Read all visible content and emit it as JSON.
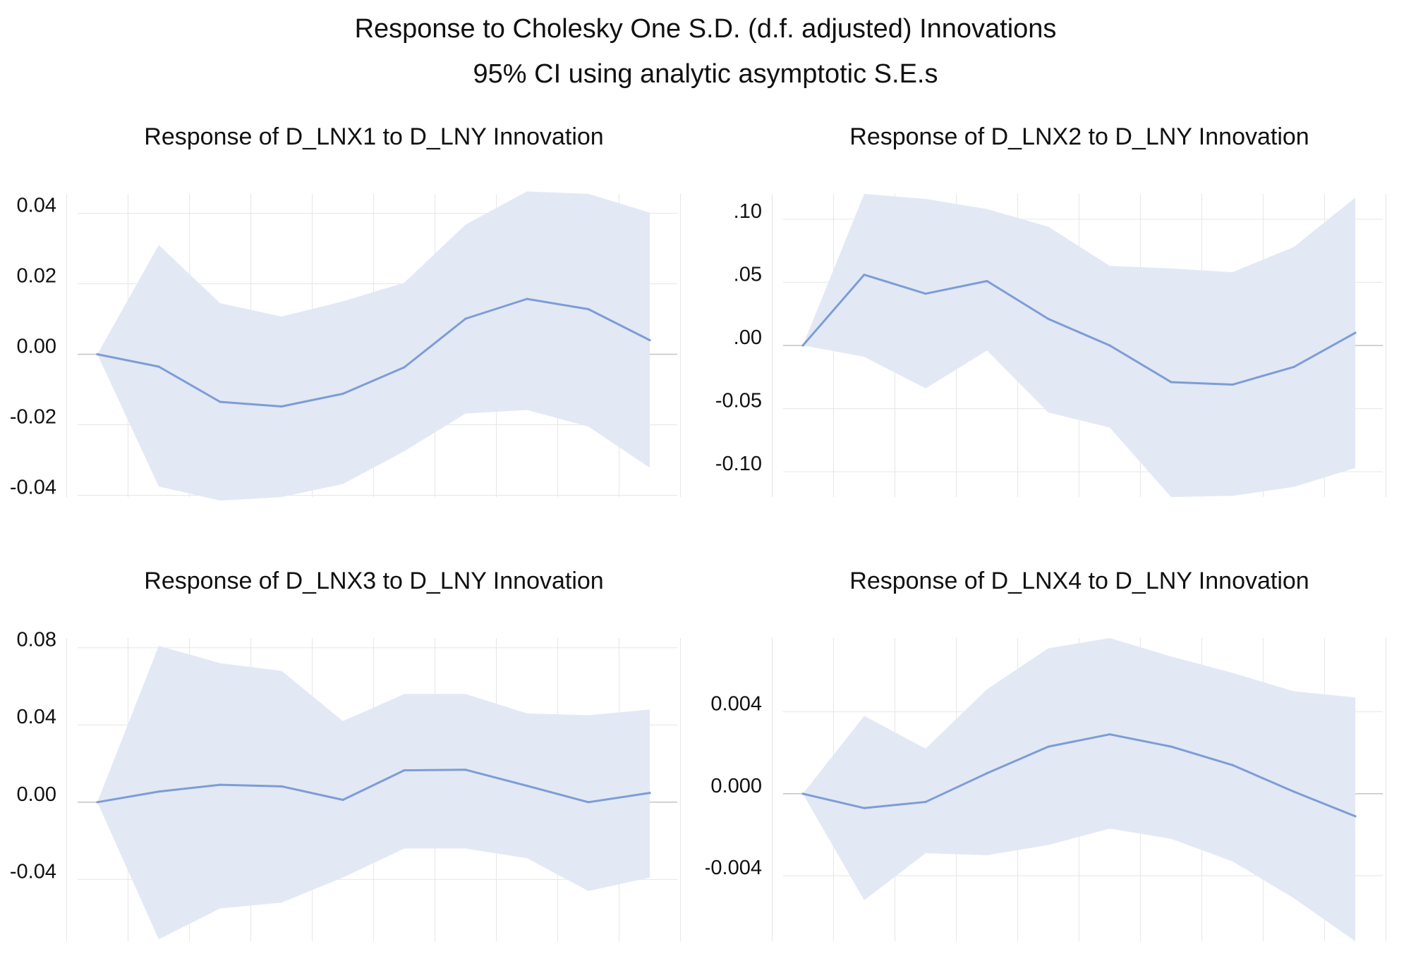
{
  "title": "Response to Cholesky One S.D. (d.f. adjusted) Innovations",
  "subtitle": "95% CI using analytic asymptotic S.E.s",
  "colors": {
    "band": "#e3e8f5",
    "line": "#7c9dd6",
    "grid": "#e6e6e6",
    "zero": "#c4c4c4"
  },
  "chart_data": [
    {
      "type": "line",
      "title": "Response of D_LNX1 to D_LNY Innovation",
      "x": [
        1,
        2,
        3,
        4,
        5,
        6,
        7,
        8,
        9,
        10
      ],
      "xticks": [
        "1",
        "2",
        "3",
        "4",
        "5",
        "6",
        "7",
        "8",
        "9",
        "10"
      ],
      "ylim": [
        -0.0405,
        0.0455
      ],
      "yticks": [
        0.04,
        0.02,
        0.0,
        -0.02,
        -0.04
      ],
      "ytick_labels": [
        "0.04",
        "0.02",
        "0.00",
        "-0.02",
        "-0.04"
      ],
      "series": [
        {
          "name": "response",
          "values": [
            0.0,
            -0.0035,
            -0.0135,
            -0.0148,
            -0.0112,
            -0.0037,
            0.0101,
            0.0157,
            0.0128,
            0.004
          ]
        },
        {
          "name": "upper",
          "values": [
            0.0,
            0.031,
            0.0145,
            0.0107,
            0.015,
            0.0203,
            0.0368,
            0.0462,
            0.0455,
            0.0402
          ]
        },
        {
          "name": "lower",
          "values": [
            0.0,
            -0.0375,
            -0.0415,
            -0.0405,
            -0.0368,
            -0.0275,
            -0.0168,
            -0.0158,
            -0.0205,
            -0.0322
          ]
        }
      ]
    },
    {
      "type": "line",
      "title": "Response of D_LNX2 to D_LNY Innovation",
      "x": [
        1,
        2,
        3,
        4,
        5,
        6,
        7,
        8,
        9,
        10
      ],
      "xticks": [
        "1",
        "2",
        "3",
        "4",
        "5",
        "6",
        "7",
        "8",
        "9",
        "10"
      ],
      "ylim": [
        -0.12,
        0.12
      ],
      "yticks": [
        0.1,
        0.05,
        0.0,
        -0.05,
        -0.1
      ],
      "ytick_labels": [
        ".10",
        ".05",
        ".00",
        "-0.05",
        "-0.10"
      ],
      "series": [
        {
          "name": "response",
          "values": [
            0.0,
            0.056,
            0.041,
            0.051,
            0.021,
            0.0,
            -0.029,
            -0.031,
            -0.017,
            0.01
          ]
        },
        {
          "name": "upper",
          "values": [
            0.0,
            0.12,
            0.116,
            0.108,
            0.094,
            0.063,
            0.061,
            0.058,
            0.078,
            0.117
          ]
        },
        {
          "name": "lower",
          "values": [
            0.0,
            -0.009,
            -0.034,
            -0.004,
            -0.053,
            -0.065,
            -0.12,
            -0.119,
            -0.112,
            -0.097
          ]
        }
      ]
    },
    {
      "type": "line",
      "title": "Response of D_LNX3 to D_LNY Innovation",
      "x": [
        1,
        2,
        3,
        4,
        5,
        6,
        7,
        8,
        9,
        10
      ],
      "xticks": [
        "1",
        "2",
        "3",
        "4",
        "5",
        "6",
        "7",
        "8",
        "9",
        "10"
      ],
      "ylim": [
        -0.072,
        0.085
      ],
      "yticks": [
        0.08,
        0.04,
        0.0,
        -0.04
      ],
      "ytick_labels": [
        "0.08",
        "0.04",
        "0.00",
        "-0.04"
      ],
      "series": [
        {
          "name": "response",
          "values": [
            0.0,
            0.0055,
            0.009,
            0.0082,
            0.0012,
            0.0165,
            0.0168,
            0.0085,
            0.0,
            0.0048
          ]
        },
        {
          "name": "upper",
          "values": [
            0.0,
            0.081,
            0.072,
            0.068,
            0.042,
            0.056,
            0.056,
            0.046,
            0.045,
            0.048
          ]
        },
        {
          "name": "lower",
          "values": [
            0.0,
            -0.071,
            -0.055,
            -0.052,
            -0.039,
            -0.024,
            -0.024,
            -0.029,
            -0.046,
            -0.039
          ]
        }
      ]
    },
    {
      "type": "line",
      "title": "Response of D_LNX4 to D_LNY Innovation",
      "x": [
        1,
        2,
        3,
        4,
        5,
        6,
        7,
        8,
        9,
        10
      ],
      "xticks": [
        "1",
        "2",
        "3",
        "4",
        "5",
        "6",
        "7",
        "8",
        "9",
        "10"
      ],
      "ylim": [
        -0.0072,
        0.0076
      ],
      "yticks": [
        0.004,
        0.0,
        -0.004
      ],
      "ytick_labels": [
        "0.004",
        "0.000",
        "-0.004"
      ],
      "series": [
        {
          "name": "response",
          "values": [
            0.0,
            -0.0007,
            -0.0004,
            0.001,
            0.0023,
            0.0029,
            0.0023,
            0.0014,
            0.0001,
            -0.0011
          ]
        },
        {
          "name": "upper",
          "values": [
            0.0,
            0.0038,
            0.0022,
            0.0051,
            0.0071,
            0.0076,
            0.0067,
            0.0059,
            0.005,
            0.0047
          ]
        },
        {
          "name": "lower",
          "values": [
            0.0,
            -0.0052,
            -0.0029,
            -0.003,
            -0.0025,
            -0.0017,
            -0.0022,
            -0.0033,
            -0.0051,
            -0.0072
          ]
        }
      ]
    }
  ]
}
